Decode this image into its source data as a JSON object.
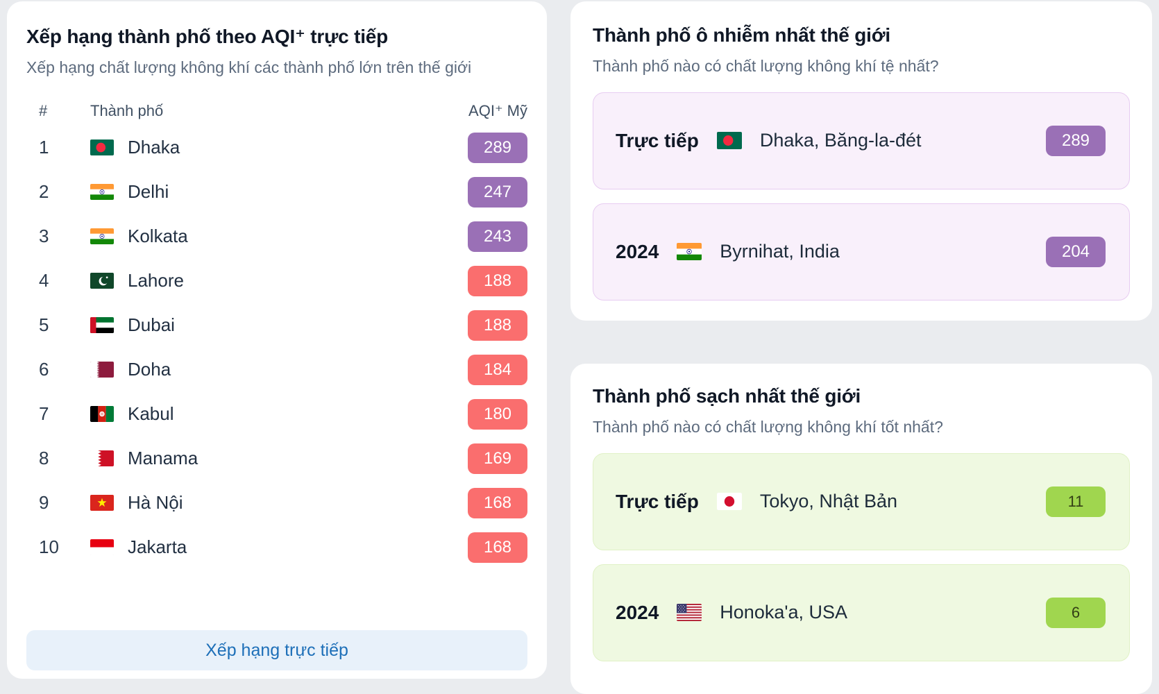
{
  "colors": {
    "aqi_purple": "#9a70b6",
    "aqi_red": "#fa6e6e",
    "aqi_green": "#a0d64f",
    "green_badge_text": "#333f16",
    "link_blue": "#1d6fb8",
    "btn_bg": "#e8f1fa",
    "polluted_card_bg": "#f9f0fb",
    "polluted_card_border": "#e7ccf1",
    "clean_card_bg": "#eff9e1",
    "clean_card_border": "#e0f1c6"
  },
  "live_ranking": {
    "title": "Xếp hạng thành phố theo AQI⁺ trực tiếp",
    "subtitle": "Xếp hạng chất lượng không khí các thành phố lớn trên thế giới",
    "columns": {
      "rank": "#",
      "city": "Thành phố",
      "aqi": "AQI⁺ Mỹ"
    },
    "rows": [
      {
        "rank": "1",
        "flag": "bd",
        "city": "Dhaka",
        "aqi": "289",
        "level": "purple"
      },
      {
        "rank": "2",
        "flag": "in",
        "city": "Delhi",
        "aqi": "247",
        "level": "purple"
      },
      {
        "rank": "3",
        "flag": "in",
        "city": "Kolkata",
        "aqi": "243",
        "level": "purple"
      },
      {
        "rank": "4",
        "flag": "pk",
        "city": "Lahore",
        "aqi": "188",
        "level": "red"
      },
      {
        "rank": "5",
        "flag": "ae",
        "city": "Dubai",
        "aqi": "188",
        "level": "red"
      },
      {
        "rank": "6",
        "flag": "qa",
        "city": "Doha",
        "aqi": "184",
        "level": "red"
      },
      {
        "rank": "7",
        "flag": "af",
        "city": "Kabul",
        "aqi": "180",
        "level": "red"
      },
      {
        "rank": "8",
        "flag": "bh",
        "city": "Manama",
        "aqi": "169",
        "level": "red"
      },
      {
        "rank": "9",
        "flag": "vn",
        "city": "Hà Nội",
        "aqi": "168",
        "level": "red"
      },
      {
        "rank": "10",
        "flag": "id",
        "city": "Jakarta",
        "aqi": "168",
        "level": "red"
      }
    ],
    "footer_link": "Xếp hạng trực tiếp"
  },
  "most_polluted": {
    "title": "Thành phố ô nhiễm nhất thế giới",
    "subtitle": "Thành phố nào có chất lượng không khí tệ nhất?",
    "cards": [
      {
        "label": "Trực tiếp",
        "flag": "bd",
        "city": "Dhaka, Băng-la-đét",
        "aqi": "289",
        "level": "purple"
      },
      {
        "label": "2024",
        "flag": "in",
        "city": "Byrnihat, India",
        "aqi": "204",
        "level": "purple"
      }
    ]
  },
  "cleanest": {
    "title": "Thành phố sạch nhất thế giới",
    "subtitle": "Thành phố nào có chất lượng không khí tốt nhất?",
    "cards": [
      {
        "label": "Trực tiếp",
        "flag": "jp",
        "city": "Tokyo, Nhật Bản",
        "aqi": "11",
        "level": "green"
      },
      {
        "label": "2024",
        "flag": "us",
        "city": "Honoka'a, USA",
        "aqi": "6",
        "level": "green"
      }
    ]
  }
}
